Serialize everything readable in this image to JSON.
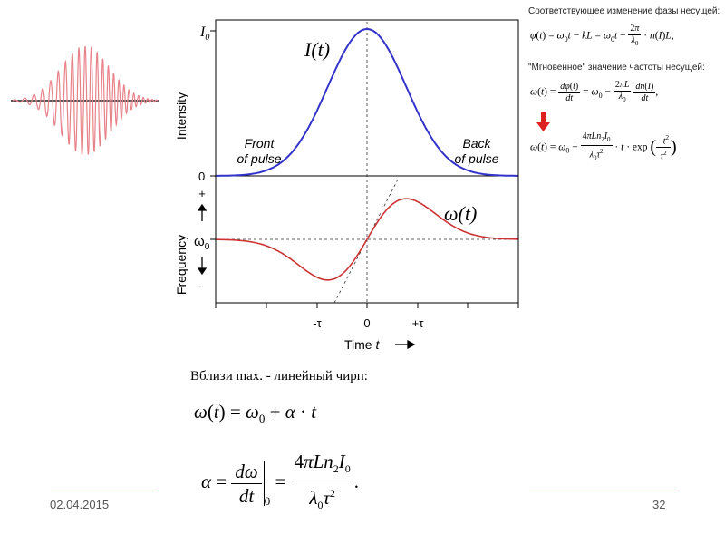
{
  "plot": {
    "i0_label": "I",
    "i0_sub": "0",
    "zero_top_label": "0",
    "zero_mid_label": "0",
    "intensity_label": "Intensity",
    "frequency_label": "Frequency",
    "plus_label": "+",
    "minus_label": "-",
    "omega0_label": "ω",
    "omega0_sub": "0",
    "curve_i_label": "I(t)",
    "curve_w_label": "ω(t)",
    "front_line1": "Front",
    "front_line2": "of pulse",
    "back_line1": "Back",
    "back_line2": "of pulse",
    "tick_minus_tau": "-τ",
    "tick_zero": "0",
    "tick_plus_tau": "+τ",
    "time_label": "Time",
    "time_var": "t",
    "colors": {
      "intensity": "#3333cc",
      "frequency": "#cc3333",
      "pulse": "#e8828a"
    }
  },
  "chart_data": {
    "type": "line",
    "series": [
      {
        "name": "I(t)",
        "description_shape": "gaussian",
        "x": [
          -1.7,
          -1.5,
          -1.25,
          -1.0,
          -0.75,
          -0.5,
          -0.25,
          0,
          0.25,
          0.5,
          0.75,
          1.0,
          1.25,
          1.5,
          1.7
        ],
        "y": [
          0.0,
          0.03,
          0.08,
          0.2,
          0.4,
          0.64,
          0.88,
          1.0,
          0.88,
          0.64,
          0.4,
          0.2,
          0.08,
          0.03,
          0.0
        ]
      },
      {
        "name": "ω(t)",
        "x": [
          -1.7,
          -1.5,
          -1.25,
          -1.0,
          -0.75,
          -0.5,
          -0.25,
          0,
          0.25,
          0.5,
          0.75,
          1.0,
          1.25,
          1.5,
          1.7
        ],
        "y": [
          0.0,
          -0.03,
          -0.15,
          -0.55,
          -0.9,
          -0.75,
          -0.45,
          0.0,
          0.45,
          0.75,
          0.9,
          0.55,
          0.15,
          0.03,
          0.0
        ]
      }
    ],
    "xticks": [
      "-τ",
      "0",
      "+τ"
    ],
    "xlabel": "Time t",
    "ylabel_top": "Intensity",
    "ylabel_bottom": "Frequency"
  },
  "equations": {
    "phase_heading": "Соответствующее изменение фазы несущей:",
    "freq_heading": "\"Мгновенное\" значение частоты несущей:",
    "near_max": "Вблизи max. - линейный чирп:"
  },
  "footer": {
    "date": "02.04.2015",
    "page": "32"
  }
}
